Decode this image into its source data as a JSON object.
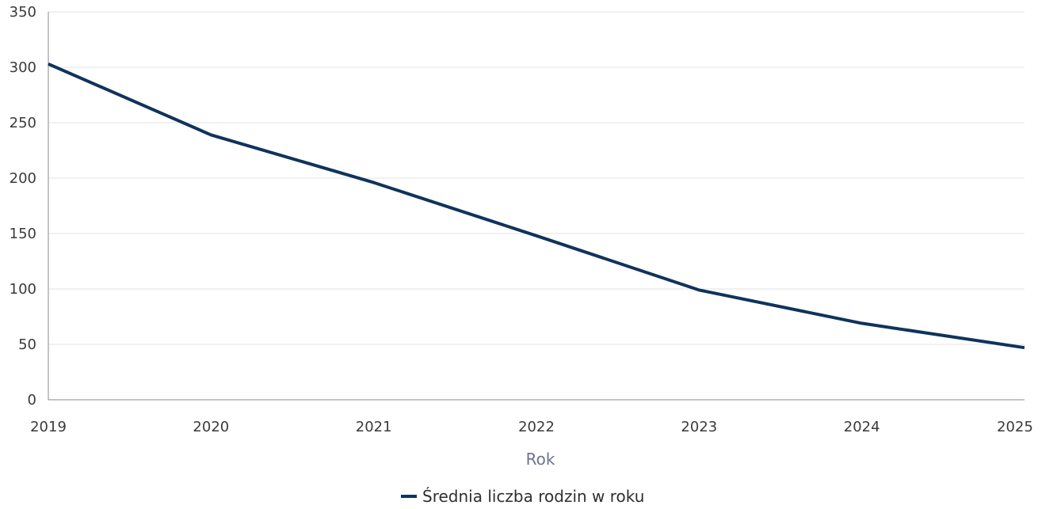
{
  "chart_data": {
    "type": "line",
    "x": [
      "2019",
      "2020",
      "2021",
      "2022",
      "2023",
      "2024",
      "2025"
    ],
    "series": [
      {
        "name": "Średnia liczba rodzin w roku",
        "values": [
          303,
          239,
          196,
          148,
          99,
          69,
          47
        ],
        "color": "#0f335c"
      }
    ],
    "xlabel": "Rok",
    "ylabel": "",
    "ylim": [
      0,
      350
    ],
    "yticks": [
      "0",
      "50",
      "100",
      "150",
      "200",
      "250",
      "300",
      "350"
    ],
    "grid": true,
    "legend": "bottom-center"
  }
}
